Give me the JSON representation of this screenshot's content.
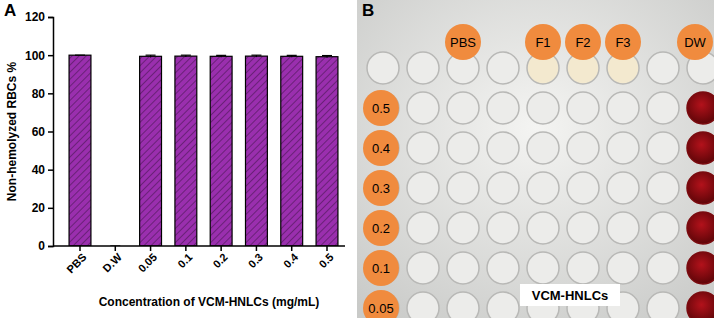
{
  "figure": {
    "panel_labels": [
      "A",
      "B"
    ]
  },
  "chart_data": {
    "type": "bar",
    "categories": [
      "PBS",
      "D.W",
      "0.05",
      "0.1",
      "0.2",
      "0.3",
      "0.4",
      "0.5"
    ],
    "values": [
      100,
      0,
      99.4,
      99.5,
      99.4,
      99.5,
      99.4,
      99.2
    ],
    "errors": [
      0,
      0,
      0.6,
      0.5,
      0.5,
      0.5,
      0.5,
      0.6
    ],
    "color": "#9a2fae",
    "xlabel": "Concentration of VCM-HNLCs (mg/mL)",
    "ylabel": "Non-hemolyzed RBCs %",
    "ylim": [
      0,
      120
    ],
    "yticks": [
      0,
      20,
      40,
      60,
      80,
      100,
      120
    ]
  },
  "plate": {
    "column_labels": [
      "PBS",
      "F1",
      "F2",
      "F3",
      "DW"
    ],
    "row_labels": [
      "0.5",
      "0.4",
      "0.3",
      "0.2",
      "0.1",
      "0.05"
    ],
    "caption": "VCM-HNLCs"
  }
}
